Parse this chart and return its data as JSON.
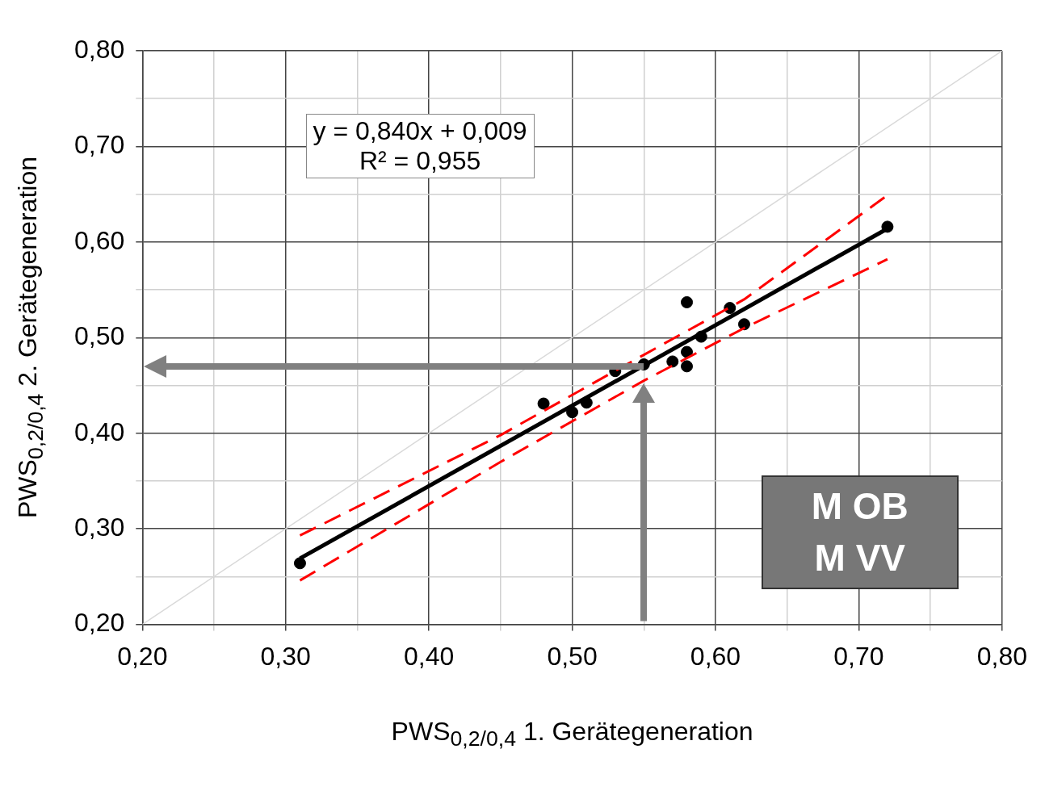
{
  "chart_data": {
    "type": "scatter",
    "xlabel": "PWS$_{0,2/0,4}$ 1. Gerätegeneration",
    "ylabel": "PWS$_{0,2/0,4}$ 2. Gerätegeneration",
    "xlim": [
      0.2,
      0.8
    ],
    "ylim": [
      0.2,
      0.8
    ],
    "xticks": [
      {
        "value": 0.2,
        "label": "0,20"
      },
      {
        "value": 0.25,
        "label": null
      },
      {
        "value": 0.3,
        "label": "0,30"
      },
      {
        "value": 0.35,
        "label": null
      },
      {
        "value": 0.4,
        "label": "0,40"
      },
      {
        "value": 0.45,
        "label": null
      },
      {
        "value": 0.5,
        "label": "0,50"
      },
      {
        "value": 0.55,
        "label": null
      },
      {
        "value": 0.6,
        "label": "0,60"
      },
      {
        "value": 0.65,
        "label": null
      },
      {
        "value": 0.7,
        "label": "0,70"
      },
      {
        "value": 0.75,
        "label": null
      },
      {
        "value": 0.8,
        "label": "0,80"
      }
    ],
    "yticks": [
      {
        "value": 0.2,
        "label": "0,20"
      },
      {
        "value": 0.25,
        "label": null
      },
      {
        "value": 0.3,
        "label": "0,30"
      },
      {
        "value": 0.35,
        "label": null
      },
      {
        "value": 0.4,
        "label": "0,40"
      },
      {
        "value": 0.45,
        "label": null
      },
      {
        "value": 0.5,
        "label": "0,50"
      },
      {
        "value": 0.55,
        "label": null
      },
      {
        "value": 0.6,
        "label": "0,60"
      },
      {
        "value": 0.65,
        "label": null
      },
      {
        "value": 0.7,
        "label": "0,70"
      },
      {
        "value": 0.75,
        "label": null
      },
      {
        "value": 0.8,
        "label": "0,80"
      }
    ],
    "grid": true,
    "legend": false,
    "series": [
      {
        "type": "line",
        "color": "#d9d9d9",
        "marker": "none",
        "line_style": "solid",
        "x": [
          0.2,
          0.8
        ],
        "values": [
          0.2,
          0.8
        ]
      },
      {
        "type": "line",
        "color": "#ff0000",
        "marker": "none",
        "line_style": "dashed",
        "x": [
          0.31,
          0.45,
          0.55,
          0.62,
          0.72
        ],
        "values": [
          0.293,
          0.398,
          0.482,
          0.54,
          0.649
        ]
      },
      {
        "type": "line",
        "color": "#ff0000",
        "marker": "none",
        "line_style": "dashed",
        "x": [
          0.31,
          0.45,
          0.55,
          0.62,
          0.72
        ],
        "values": [
          0.246,
          0.37,
          0.455,
          0.51,
          0.582
        ]
      },
      {
        "type": "line",
        "color": "#000000",
        "marker": "none",
        "line_style": "solid",
        "x": [
          0.31,
          0.72
        ],
        "values": [
          0.269,
          0.614
        ]
      },
      {
        "type": "scatter",
        "color": "#000000",
        "marker": "circle",
        "x": [
          0.31,
          0.48,
          0.5,
          0.51,
          0.53,
          0.55,
          0.57,
          0.58,
          0.58,
          0.58,
          0.59,
          0.61,
          0.62,
          0.72
        ],
        "values": [
          0.264,
          0.431,
          0.422,
          0.432,
          0.465,
          0.472,
          0.475,
          0.537,
          0.485,
          0.47,
          0.501,
          0.531,
          0.514,
          0.616
        ]
      }
    ],
    "annotations": [
      "y = 0,840x + 0,009",
      "R² = 0,955",
      "M OB",
      "M VV"
    ]
  }
}
